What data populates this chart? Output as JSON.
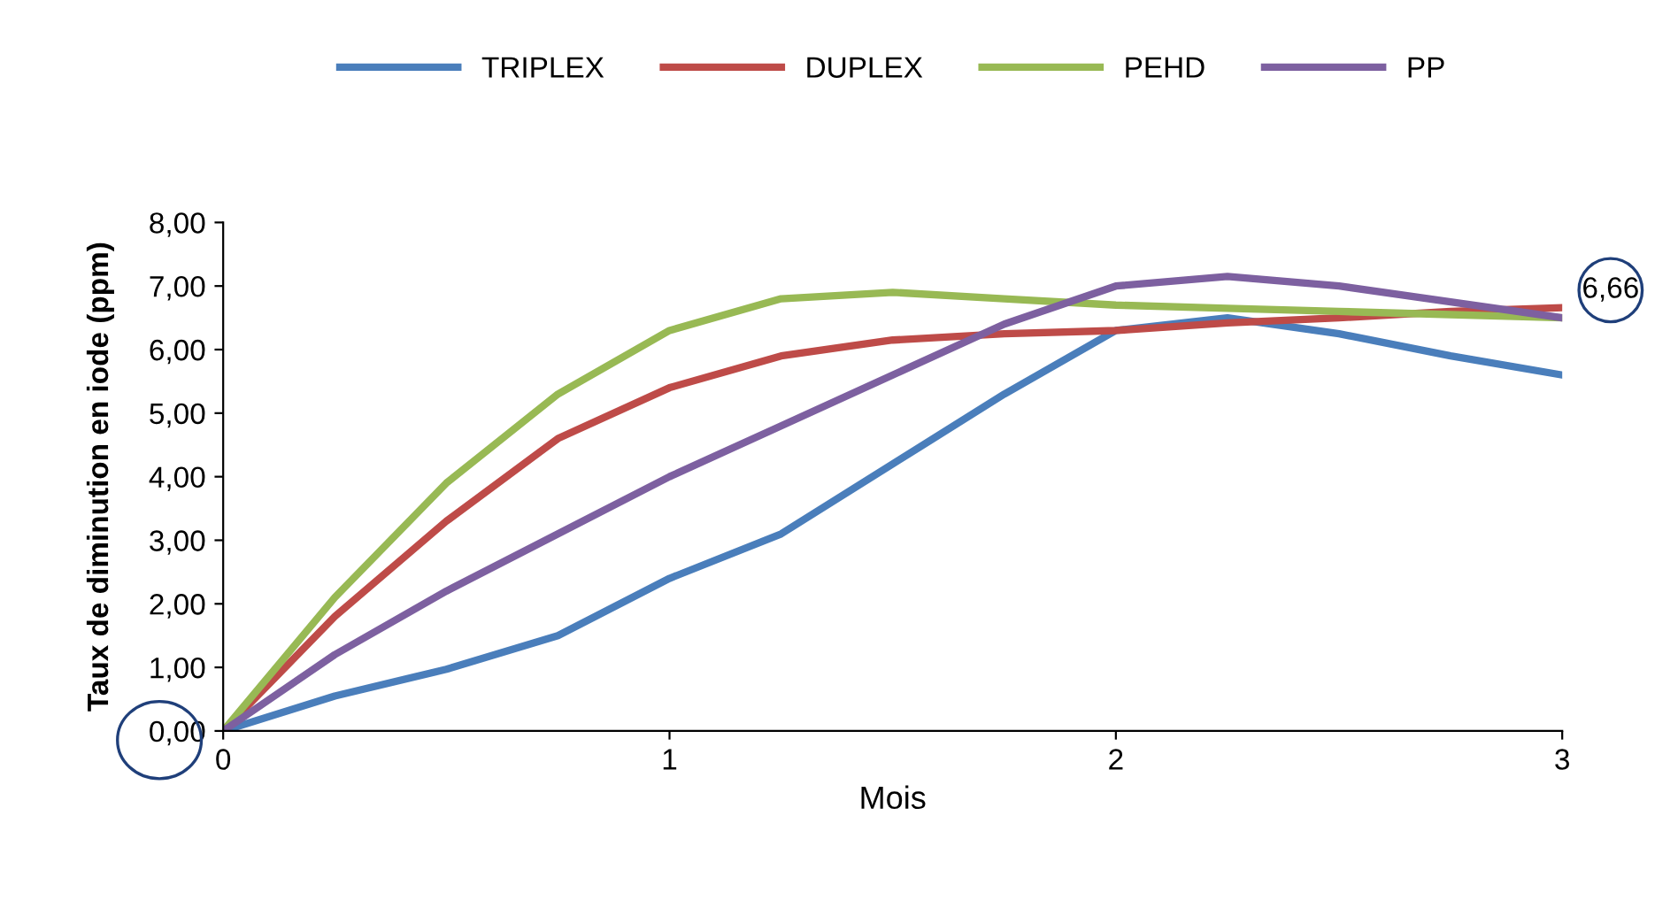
{
  "chart_data": {
    "type": "line",
    "xlabel": "Mois",
    "ylabel": "Taux de diminution en iode (ppm)",
    "xlim": [
      0,
      3
    ],
    "xticks": [
      0,
      1,
      2,
      3
    ],
    "ylim": [
      0,
      8
    ],
    "yticks": [
      {
        "value": 0,
        "label": "0,00"
      },
      {
        "value": 1,
        "label": "1,00"
      },
      {
        "value": 2,
        "label": "2,00"
      },
      {
        "value": 3,
        "label": "3,00"
      },
      {
        "value": 4,
        "label": "4,00"
      },
      {
        "value": 5,
        "label": "5,00"
      },
      {
        "value": 6,
        "label": "6,00"
      },
      {
        "value": 7,
        "label": "7,00"
      },
      {
        "value": 8,
        "label": "8,00"
      }
    ],
    "x": [
      0,
      0.25,
      0.5,
      0.75,
      1,
      1.25,
      1.5,
      1.75,
      2,
      2.25,
      2.5,
      2.75,
      3
    ],
    "series": [
      {
        "name": "TRIPLEX",
        "color": "#4a7ebb",
        "values": [
          0,
          0.55,
          0.97,
          1.5,
          2.4,
          3.1,
          4.2,
          5.3,
          6.3,
          6.5,
          6.25,
          5.9,
          5.6
        ]
      },
      {
        "name": "DUPLEX",
        "color": "#be4b48",
        "values": [
          0,
          1.8,
          3.3,
          4.6,
          5.4,
          5.9,
          6.15,
          6.25,
          6.3,
          6.42,
          6.5,
          6.6,
          6.66
        ]
      },
      {
        "name": "PEHD",
        "color": "#98b954",
        "values": [
          0,
          2.1,
          3.9,
          5.3,
          6.3,
          6.8,
          6.9,
          6.8,
          6.7,
          6.65,
          6.6,
          6.55,
          6.5
        ]
      },
      {
        "name": "PP",
        "color": "#7d60a0",
        "values": [
          0,
          1.2,
          2.2,
          3.1,
          4.0,
          4.8,
          5.6,
          6.4,
          7.0,
          7.15,
          7.0,
          6.75,
          6.5
        ]
      }
    ],
    "annotations": [
      {
        "text": "6,66",
        "x": 3,
        "y": 6.66
      }
    ],
    "grid": false,
    "legend": "top",
    "marker": "none",
    "line_style": "solid"
  }
}
